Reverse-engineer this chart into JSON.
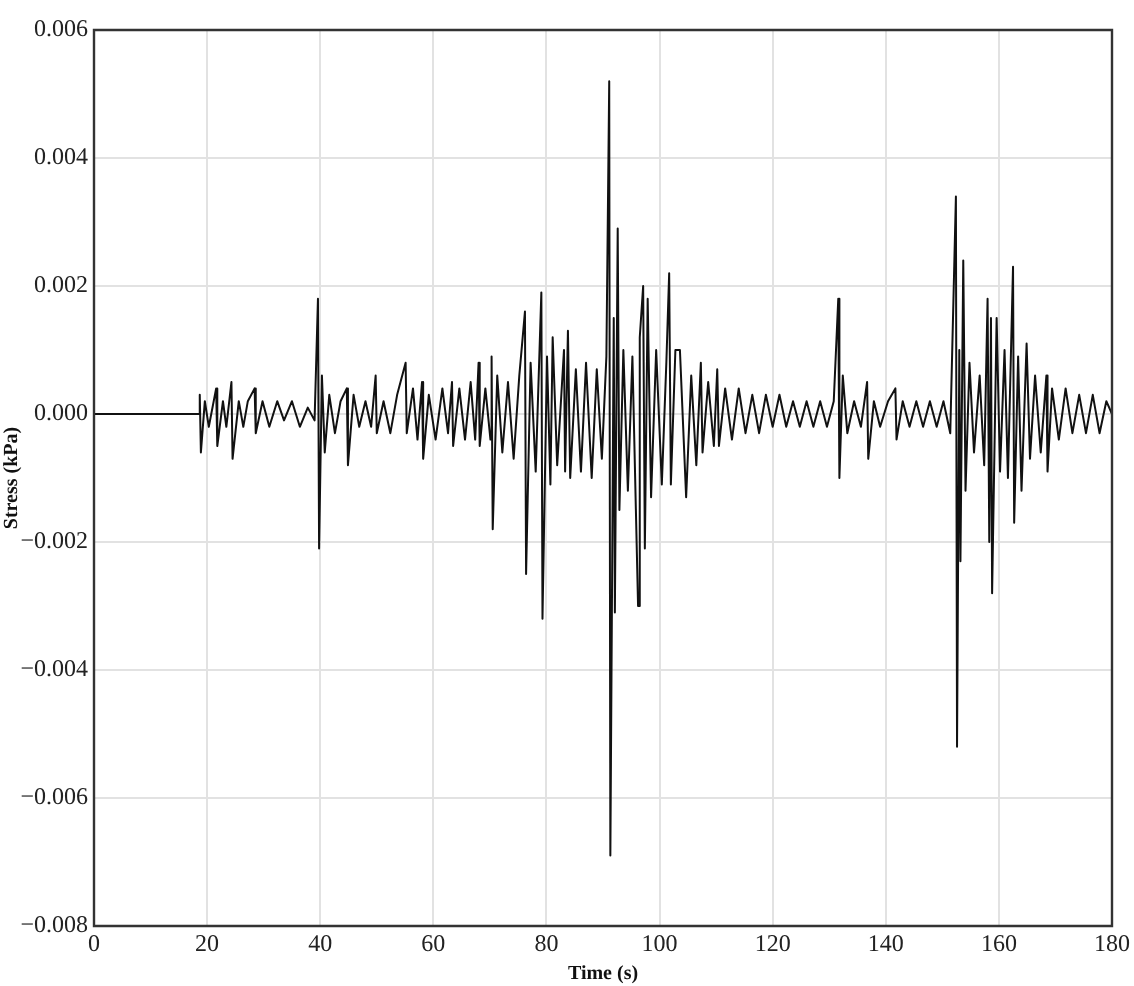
{
  "chart_data": {
    "type": "line",
    "xlabel": "Time (s)",
    "ylabel": "Stress (kPa)",
    "x": [
      0,
      18.5,
      18.7,
      18.9,
      19.6,
      20.3,
      21.6,
      21.8,
      22.8,
      23.4,
      24.3,
      24.5,
      25.6,
      26.4,
      27.2,
      28.4,
      28.6,
      29.8,
      31,
      32.4,
      33.6,
      35,
      36.4,
      37.8,
      39,
      39.6,
      39.8,
      40.3,
      40.8,
      41.6,
      42.6,
      43.6,
      44.7,
      44.9,
      45.9,
      46.9,
      48,
      49,
      49.8,
      50,
      51.2,
      52.4,
      53.6,
      55.1,
      55.3,
      56.4,
      57.2,
      58,
      58.2,
      59.2,
      60.4,
      61.6,
      62.6,
      63.3,
      63.5,
      64.6,
      65.6,
      66.6,
      67.4,
      68,
      68.2,
      69.2,
      70.1,
      70.3,
      70.5,
      71.3,
      72.2,
      73.2,
      74.2,
      75.2,
      76.2,
      76.4,
      77.2,
      78.1,
      79.1,
      79.3,
      80.1,
      80.7,
      81.1,
      81.9,
      83.1,
      83.3,
      83.8,
      84.2,
      85.2,
      86.1,
      87,
      88,
      88.9,
      89.8,
      90.6,
      91.1,
      91.3,
      91.9,
      92.1,
      92.6,
      92.9,
      93.6,
      94.4,
      95.2,
      96.2,
      96.5,
      97.1,
      97.4,
      97.9,
      98.5,
      99.4,
      100.4,
      101.2,
      101.7,
      102,
      102.8,
      103.6,
      104.7,
      105.6,
      106.5,
      107.3,
      107.6,
      108.6,
      109.6,
      110.2,
      110.5,
      111.6,
      112.8,
      114,
      115.2,
      116.4,
      117.6,
      118.8,
      120,
      121.2,
      122.4,
      123.6,
      124.8,
      126,
      127.2,
      128.4,
      129.6,
      130.8,
      131.6,
      131.8,
      132.4,
      133.2,
      134.4,
      135.6,
      136.7,
      136.9,
      137.9,
      139,
      140.4,
      141.7,
      141.9,
      143,
      144.2,
      145.4,
      146.6,
      147.8,
      149,
      150.2,
      151.4,
      152.4,
      152.6,
      153,
      153.2,
      153.7,
      154.1,
      154.8,
      155.6,
      156.6,
      157.4,
      158,
      158.3,
      158.6,
      158.8,
      159.6,
      160.2,
      161,
      161.6,
      162.5,
      162.7,
      163.4,
      164,
      164.9,
      165.5,
      166.4,
      167.4,
      168.4,
      168.6,
      169.4,
      170.6,
      171.8,
      173,
      174.2,
      175.4,
      176.6,
      177.8,
      179,
      180
    ],
    "series": [
      {
        "color": "#111111",
        "values": [
          0,
          0,
          0.0003,
          -0.0006,
          0.0002,
          -0.0002,
          0.0004,
          -0.0005,
          0.0002,
          -0.0002,
          0.0005,
          -0.0007,
          0.0002,
          -0.0002,
          0.0002,
          0.0004,
          -0.0003,
          0.0002,
          -0.0002,
          0.0002,
          -0.0001,
          0.0002,
          -0.0002,
          0.0001,
          -0.0001,
          0.0018,
          -0.0021,
          0.0006,
          -0.0006,
          0.0003,
          -0.0003,
          0.0002,
          0.0004,
          -0.0008,
          0.0003,
          -0.0002,
          0.0002,
          -0.0002,
          0.0006,
          -0.0003,
          0.0002,
          -0.0003,
          0.0003,
          0.0008,
          -0.0003,
          0.0004,
          -0.0004,
          0.0005,
          -0.0007,
          0.0003,
          -0.0004,
          0.0004,
          -0.0003,
          0.0005,
          -0.0005,
          0.0004,
          -0.0004,
          0.0005,
          -0.0004,
          0.0008,
          -0.0005,
          0.0004,
          -0.0004,
          0.0009,
          -0.0018,
          0.0006,
          -0.0006,
          0.0005,
          -0.0007,
          0.0006,
          0.0016,
          -0.0025,
          0.0008,
          -0.0009,
          0.0019,
          -0.0032,
          0.0009,
          -0.0011,
          0.0012,
          -0.0008,
          0.001,
          -0.0009,
          0.0013,
          -0.001,
          0.0007,
          -0.0009,
          0.0008,
          -0.001,
          0.0007,
          -0.0007,
          0.0009,
          0.0052,
          -0.0069,
          0.0015,
          -0.0031,
          0.0029,
          -0.0015,
          0.001,
          -0.0012,
          0.0009,
          -0.003,
          0.0012,
          0.002,
          -0.0021,
          0.0018,
          -0.0013,
          0.001,
          -0.0011,
          0.0008,
          0.0022,
          -0.0011,
          0.001,
          0.001,
          -0.0013,
          0.0006,
          -0.0008,
          0.0008,
          -0.0006,
          0.0005,
          -0.0005,
          0.0007,
          -0.0005,
          0.0004,
          -0.0004,
          0.0004,
          -0.0003,
          0.0003,
          -0.0003,
          0.0003,
          -0.0002,
          0.0003,
          -0.0002,
          0.0002,
          -0.0002,
          0.0002,
          -0.0002,
          0.0002,
          -0.0002,
          0.0002,
          0.0018,
          -0.001,
          0.0006,
          -0.0003,
          0.0002,
          -0.0002,
          0.0005,
          -0.0007,
          0.0002,
          -0.0002,
          0.0002,
          0.0004,
          -0.0004,
          0.0002,
          -0.0002,
          0.0002,
          -0.0002,
          0.0002,
          -0.0002,
          0.0002,
          -0.0003,
          0.0034,
          -0.0052,
          0.001,
          -0.0023,
          0.0024,
          -0.0012,
          0.0008,
          -0.0006,
          0.0006,
          -0.0008,
          0.0018,
          -0.002,
          0.0015,
          -0.0028,
          0.0015,
          -0.0009,
          0.001,
          -0.001,
          0.0023,
          -0.0017,
          0.0009,
          -0.0012,
          0.0011,
          -0.0007,
          0.0006,
          -0.0006,
          0.0006,
          -0.0009,
          0.0004,
          -0.0004,
          0.0004,
          -0.0003,
          0.0003,
          -0.0003,
          0.0003,
          -0.0003,
          0.0002,
          0
        ]
      }
    ],
    "xlim": [
      0,
      180
    ],
    "xticks": [
      0,
      20,
      40,
      60,
      80,
      100,
      120,
      140,
      160,
      180
    ],
    "ylim": [
      -0.008,
      0.006
    ],
    "yticks": [
      {
        "value": -0.008,
        "label": "−0.008"
      },
      {
        "value": -0.006,
        "label": "−0.006"
      },
      {
        "value": -0.004,
        "label": "−0.004"
      },
      {
        "value": -0.002,
        "label": "−0.002"
      },
      {
        "value": 0,
        "label": "0.000"
      },
      0.002,
      0.004,
      0.006
    ],
    "grid": true
  }
}
